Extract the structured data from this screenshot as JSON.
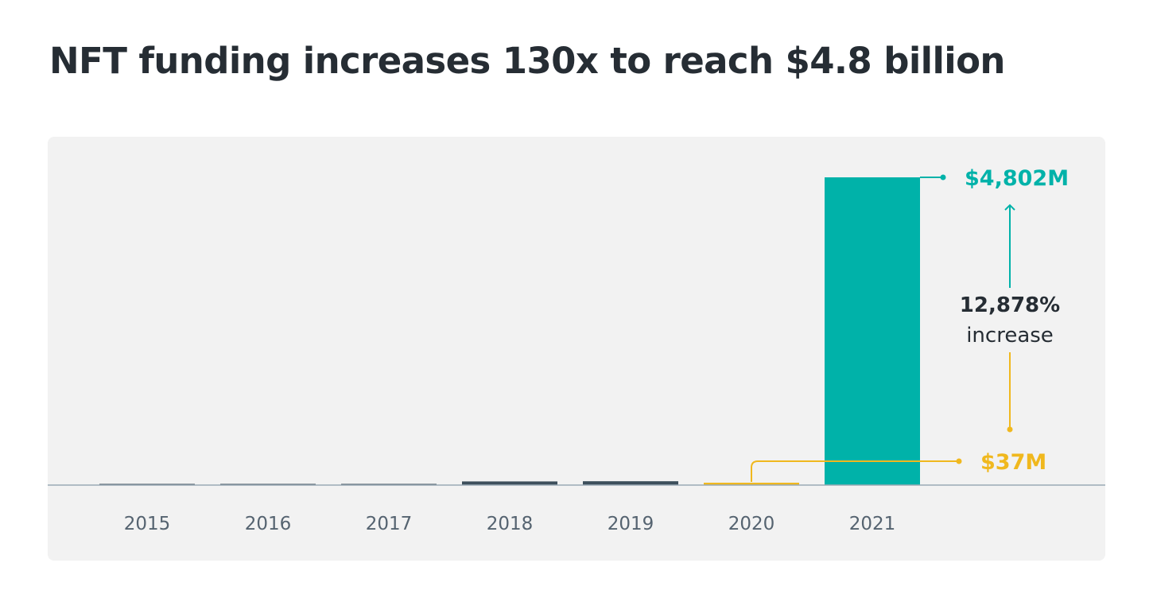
{
  "chart_data": {
    "type": "bar",
    "title": "NFT funding increases 130x to reach $4.8 billion",
    "categories": [
      "2015",
      "2016",
      "2017",
      "2018",
      "2019",
      "2020",
      "2021"
    ],
    "values": [
      3,
      3,
      3,
      57,
      60,
      37,
      4802
    ],
    "unit": "$M",
    "xlabel": "",
    "ylabel": "",
    "ylim": [
      0,
      4802
    ],
    "grid": false,
    "colors": {
      "default": "#3d4f5c",
      "highlight_2021": "#00b2a9",
      "highlight_2020": "#f0b81e",
      "baseline": "#9aa9b4"
    },
    "annotations": {
      "top_value": "$4,802M",
      "bottom_value": "$37M",
      "change_pct": "12,878%",
      "change_word": "increase"
    }
  }
}
